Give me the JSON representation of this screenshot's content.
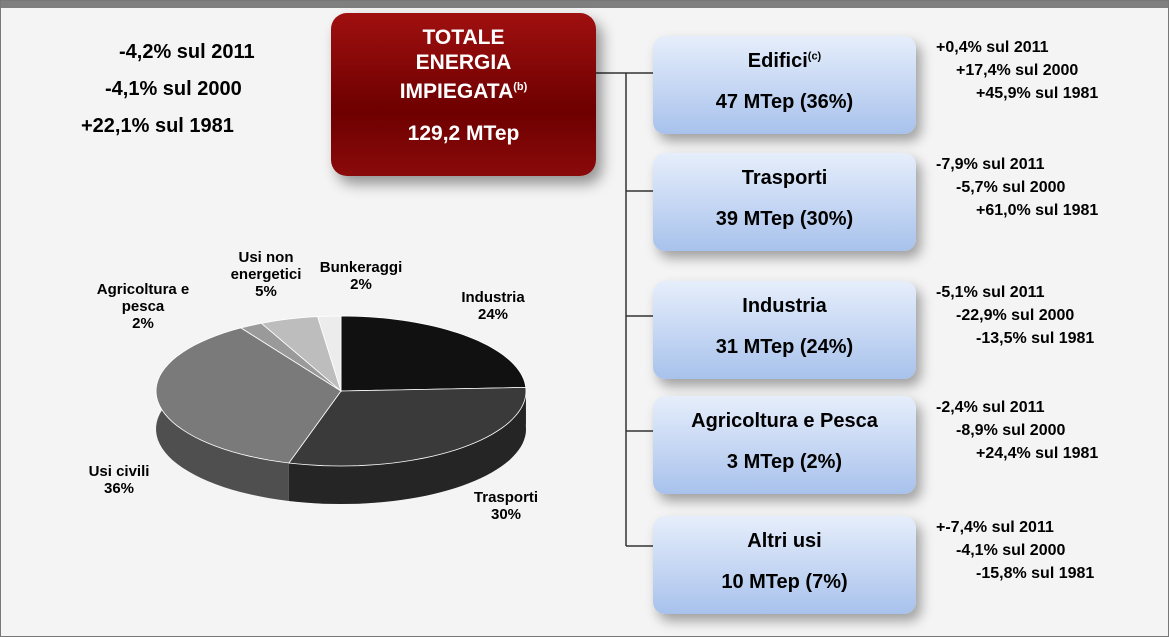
{
  "total": {
    "title_lines": [
      "TOTALE",
      "ENERGIA",
      "IMPIEGATA"
    ],
    "note": "(b)",
    "value": "129,2 MTep"
  },
  "total_changes": [
    "-4,2% sul 2011",
    "-4,1% sul 2000",
    "+22,1% sul 1981"
  ],
  "sectors": [
    {
      "name": "Edifici",
      "note": "(c)",
      "value": "47 MTep (36%)",
      "changes": [
        "+0,4% sul 2011",
        "+17,4% sul 2000",
        "+45,9% sul 1981"
      ]
    },
    {
      "name": "Trasporti",
      "value": "39 MTep (30%)",
      "changes": [
        "-7,9% sul 2011",
        "-5,7% sul 2000",
        "+61,0% sul 1981"
      ]
    },
    {
      "name": "Industria",
      "value": "31 MTep (24%)",
      "changes": [
        "-5,1% sul 2011",
        "-22,9% sul 2000",
        "-13,5% sul 1981"
      ]
    },
    {
      "name": "Agricoltura e Pesca",
      "value": "3 MTep (2%)",
      "changes": [
        "-2,4% sul 2011",
        "-8,9% sul 2000",
        "+24,4% sul 1981"
      ]
    },
    {
      "name": "Altri usi",
      "value": "10 MTep (7%)",
      "changes": [
        "+-7,4% sul 2011",
        "-4,1% sul 2000",
        "-15,8% sul 1981"
      ]
    }
  ],
  "chart_data": {
    "type": "pie",
    "categories": [
      "Industria",
      "Trasporti",
      "Usi civili",
      "Agricoltura e pesca",
      "Usi non energetici",
      "Bunkeraggi"
    ],
    "values": [
      24,
      30,
      36,
      2,
      5,
      2
    ],
    "value_labels": [
      "24%",
      "30%",
      "36%",
      "2%",
      "5%",
      "2%"
    ],
    "colors": [
      "#111111",
      "#3a3a3a",
      "#7a7a7a",
      "#9a9a9a",
      "#bdbdbd",
      "#ececec"
    ]
  }
}
